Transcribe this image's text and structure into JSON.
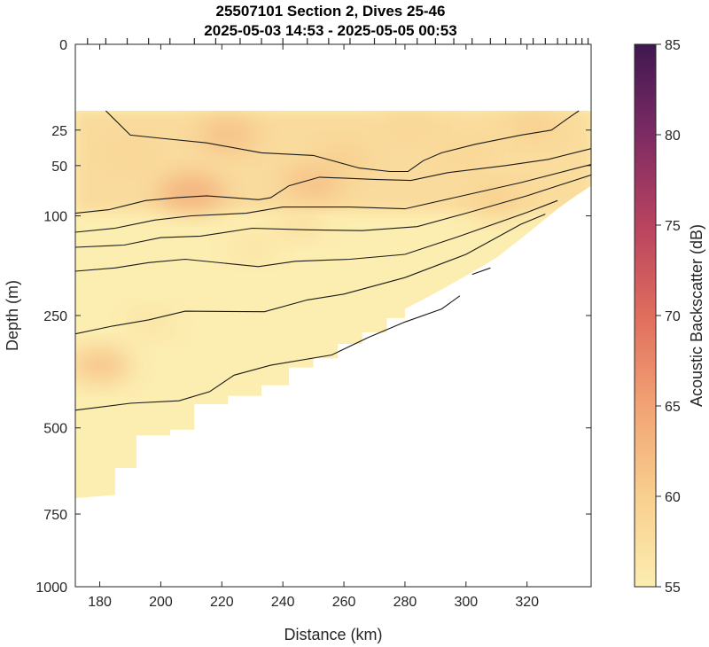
{
  "chart_data": {
    "type": "contour",
    "title_line1": "25507101 Section 2, Dives 25-46",
    "title_line2": "2025-05-03 14:53 - 2025-05-05 00:53",
    "xlabel": "Distance (km)",
    "ylabel": "Depth (m)",
    "colorbar_label": "Acoustic Backscatter (dB)",
    "xlim": [
      172,
      341
    ],
    "ylim": [
      0,
      1000
    ],
    "y_scale": "square-root (reversed)",
    "x_ticks": [
      180,
      200,
      220,
      240,
      260,
      280,
      300,
      320
    ],
    "y_ticks": [
      0,
      25,
      50,
      100,
      250,
      500,
      750,
      1000
    ],
    "colorbar_range": [
      55,
      85
    ],
    "colorbar_ticks": [
      55,
      60,
      65,
      70,
      75,
      80,
      85
    ],
    "colormap": [
      "#fcedb0",
      "#f8cf8e",
      "#f2a374",
      "#e06d5d",
      "#b8435f",
      "#7e2b64",
      "#3f1851"
    ],
    "dive_markers_km": [
      176,
      182,
      189,
      196,
      203,
      211,
      218,
      226,
      233,
      240,
      248,
      255,
      262,
      270,
      277,
      284,
      290,
      296,
      302,
      308,
      313,
      318,
      322,
      326,
      330,
      333,
      336,
      338,
      340
    ],
    "data_top_depth_m": 15,
    "bottom_profile": [
      {
        "x": 172,
        "depth": 700
      },
      {
        "x": 185,
        "depth": 690
      },
      {
        "x": 185,
        "depth": 610
      },
      {
        "x": 192,
        "depth": 610
      },
      {
        "x": 192,
        "depth": 520
      },
      {
        "x": 203,
        "depth": 520
      },
      {
        "x": 203,
        "depth": 505
      },
      {
        "x": 211,
        "depth": 505
      },
      {
        "x": 211,
        "depth": 440
      },
      {
        "x": 222,
        "depth": 440
      },
      {
        "x": 222,
        "depth": 420
      },
      {
        "x": 233,
        "depth": 420
      },
      {
        "x": 233,
        "depth": 395
      },
      {
        "x": 242,
        "depth": 395
      },
      {
        "x": 242,
        "depth": 355
      },
      {
        "x": 250,
        "depth": 355
      },
      {
        "x": 250,
        "depth": 335
      },
      {
        "x": 258,
        "depth": 335
      },
      {
        "x": 258,
        "depth": 305
      },
      {
        "x": 266,
        "depth": 305
      },
      {
        "x": 266,
        "depth": 282
      },
      {
        "x": 274,
        "depth": 282
      },
      {
        "x": 274,
        "depth": 255
      },
      {
        "x": 280,
        "depth": 255
      },
      {
        "x": 280,
        "depth": 238
      },
      {
        "x": 290,
        "depth": 210
      },
      {
        "x": 300,
        "depth": 182
      },
      {
        "x": 310,
        "depth": 155
      },
      {
        "x": 320,
        "depth": 122
      },
      {
        "x": 330,
        "depth": 92
      },
      {
        "x": 336,
        "depth": 78
      },
      {
        "x": 341,
        "depth": 68
      }
    ],
    "backscatter_hotspots": [
      {
        "x": 210,
        "depth": 75,
        "db": 64
      },
      {
        "x": 222,
        "depth": 28,
        "db": 62
      },
      {
        "x": 250,
        "depth": 65,
        "db": 62
      },
      {
        "x": 260,
        "depth": 45,
        "db": 60
      },
      {
        "x": 282,
        "depth": 22,
        "db": 59
      },
      {
        "x": 310,
        "depth": 85,
        "db": 60
      },
      {
        "x": 322,
        "depth": 22,
        "db": 60
      },
      {
        "x": 300,
        "depth": 40,
        "db": 59
      },
      {
        "x": 245,
        "depth": 110,
        "db": 58
      },
      {
        "x": 180,
        "depth": 350,
        "db": 62
      },
      {
        "x": 197,
        "depth": 265,
        "db": 57
      },
      {
        "x": 190,
        "depth": 40,
        "db": 59
      },
      {
        "x": 230,
        "depth": 140,
        "db": 57
      }
    ],
    "contour_lines": [
      [
        [
          182,
          15
        ],
        [
          190,
          28
        ],
        [
          200,
          30
        ],
        [
          215,
          33
        ],
        [
          233,
          40
        ],
        [
          250,
          42
        ],
        [
          265,
          52
        ],
        [
          275,
          55
        ],
        [
          281,
          55
        ],
        [
          286,
          46
        ],
        [
          292,
          40
        ],
        [
          303,
          34
        ],
        [
          318,
          28
        ],
        [
          328,
          25
        ],
        [
          334,
          18
        ],
        [
          337,
          15
        ]
      ],
      [
        [
          172,
          97
        ],
        [
          183,
          93
        ],
        [
          195,
          83
        ],
        [
          205,
          80
        ],
        [
          215,
          78
        ],
        [
          232,
          82
        ],
        [
          236,
          80
        ],
        [
          242,
          68
        ],
        [
          252,
          60
        ],
        [
          270,
          62
        ],
        [
          282,
          63
        ],
        [
          294,
          56
        ],
        [
          313,
          50
        ],
        [
          327,
          45
        ],
        [
          341,
          37
        ]
      ],
      [
        [
          172,
          120
        ],
        [
          185,
          115
        ],
        [
          198,
          105
        ],
        [
          210,
          100
        ],
        [
          228,
          97
        ],
        [
          240,
          90
        ],
        [
          262,
          90
        ],
        [
          280,
          92
        ],
        [
          296,
          80
        ],
        [
          318,
          65
        ],
        [
          341,
          49
        ]
      ],
      [
        [
          172,
          140
        ],
        [
          188,
          137
        ],
        [
          200,
          127
        ],
        [
          213,
          125
        ],
        [
          230,
          115
        ],
        [
          248,
          117
        ],
        [
          266,
          118
        ],
        [
          284,
          113
        ],
        [
          300,
          97
        ],
        [
          320,
          78
        ],
        [
          341,
          58
        ]
      ],
      [
        [
          172,
          175
        ],
        [
          185,
          170
        ],
        [
          196,
          162
        ],
        [
          208,
          157
        ],
        [
          232,
          168
        ],
        [
          244,
          160
        ],
        [
          262,
          157
        ],
        [
          280,
          150
        ],
        [
          298,
          125
        ],
        [
          320,
          96
        ],
        [
          330,
          83
        ]
      ],
      [
        [
          172,
          285
        ],
        [
          184,
          270
        ],
        [
          196,
          258
        ],
        [
          208,
          242
        ],
        [
          234,
          243
        ],
        [
          248,
          222
        ],
        [
          260,
          212
        ],
        [
          280,
          185
        ],
        [
          300,
          150
        ],
        [
          318,
          110
        ],
        [
          326,
          98
        ]
      ],
      [
        [
          172,
          455
        ],
        [
          190,
          438
        ],
        [
          206,
          432
        ],
        [
          216,
          410
        ],
        [
          224,
          372
        ],
        [
          236,
          350
        ],
        [
          256,
          328
        ],
        [
          268,
          292
        ],
        [
          280,
          262
        ],
        [
          292,
          238
        ],
        [
          298,
          215
        ]
      ],
      [
        [
          302,
          180
        ],
        [
          308,
          170
        ]
      ]
    ]
  }
}
